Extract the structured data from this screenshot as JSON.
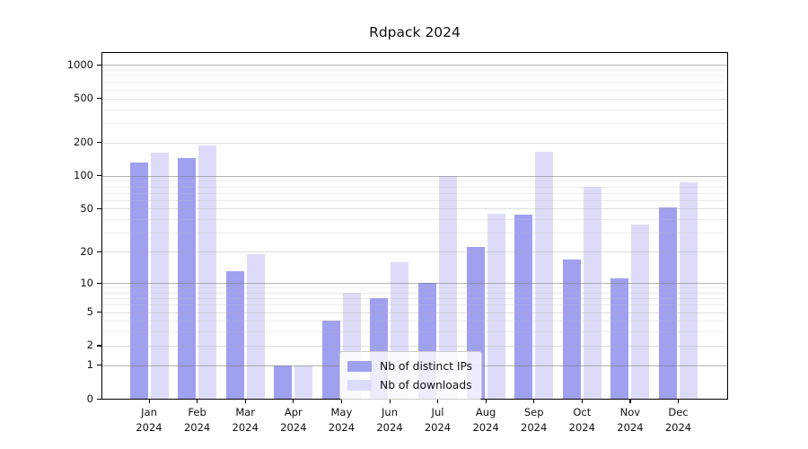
{
  "title": "Rdpack 2024",
  "chart_data": {
    "type": "bar",
    "title": "Rdpack 2024",
    "categories": [
      "Jan",
      "Feb",
      "Mar",
      "Apr",
      "May",
      "Jun",
      "Jul",
      "Aug",
      "Sep",
      "Oct",
      "Nov",
      "Dec"
    ],
    "year_label": "2024",
    "series": [
      {
        "name": "Nb of distinct IPs",
        "color": "#a0a0f0",
        "values": [
          131,
          145,
          13,
          1,
          4,
          7,
          10,
          22,
          44,
          17,
          11,
          51
        ]
      },
      {
        "name": "Nb of downloads",
        "color": "#dcdcfa",
        "values": [
          163,
          187,
          19,
          1,
          8,
          16,
          100,
          45,
          165,
          80,
          36,
          88
        ]
      }
    ],
    "y_ticks": [
      0,
      1,
      2,
      5,
      10,
      20,
      50,
      100,
      200,
      500,
      1000
    ],
    "y_scale": "log10(1+y)",
    "ylim": [
      0,
      1280
    ],
    "xlabel": "",
    "ylabel": "",
    "grid": true,
    "legend": {
      "position": "lower center",
      "entries": [
        "Nb of distinct IPs",
        "Nb of downloads"
      ]
    },
    "colors": {
      "axis": "#000000",
      "text": "#111111",
      "grid_major": "#ababab",
      "grid_minor": "#e0e0e0",
      "grid_faint": "#eeeeee",
      "legend_border": "#cccccc",
      "background": "#ffffff"
    }
  }
}
